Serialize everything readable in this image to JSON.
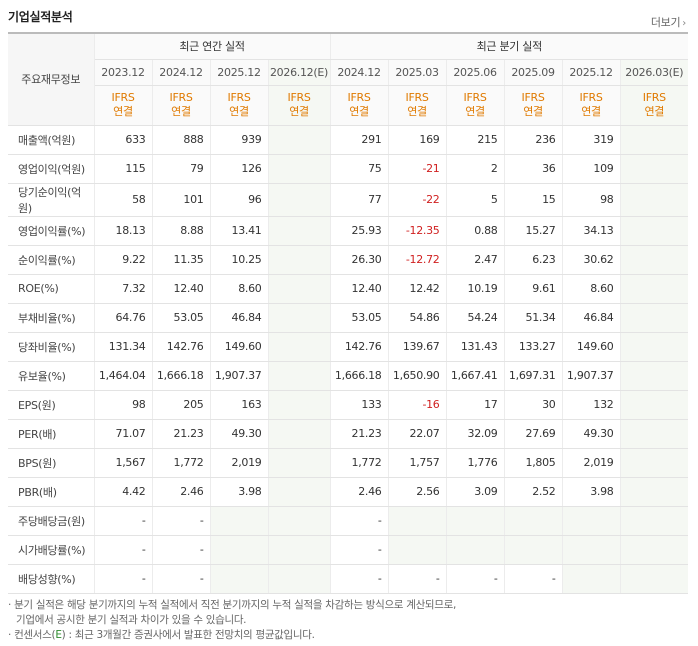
{
  "title": "기업실적분석",
  "more_label": "더보기",
  "more_arrow": "›",
  "groups": {
    "annual": "최근 연간 실적",
    "quarterly": "최근 분기 실적"
  },
  "row_header_label": "주요재무정보",
  "annual_years": [
    "2023.12",
    "2024.12",
    "2025.12",
    "2026.12(E)"
  ],
  "quarter_years": [
    "2024.12",
    "2025.03",
    "2025.06",
    "2025.09",
    "2025.12",
    "2026.03(E)"
  ],
  "ifrs_line1": "IFRS",
  "ifrs_line2": "연결",
  "rows": [
    {
      "label": "매출액(억원)",
      "annual": [
        "633",
        "888",
        "939",
        ""
      ],
      "quarterly": [
        "291",
        "169",
        "215",
        "236",
        "319",
        ""
      ]
    },
    {
      "label": "영업이익(억원)",
      "annual": [
        "115",
        "79",
        "126",
        ""
      ],
      "quarterly": [
        "75",
        "-21",
        "2",
        "36",
        "109",
        ""
      ]
    },
    {
      "label": "당기순이익(억원)",
      "annual": [
        "58",
        "101",
        "96",
        ""
      ],
      "quarterly": [
        "77",
        "-22",
        "5",
        "15",
        "98",
        ""
      ]
    },
    {
      "label": "영업이익률(%)",
      "annual": [
        "18.13",
        "8.88",
        "13.41",
        ""
      ],
      "quarterly": [
        "25.93",
        "-12.35",
        "0.88",
        "15.27",
        "34.13",
        ""
      ]
    },
    {
      "label": "순이익률(%)",
      "annual": [
        "9.22",
        "11.35",
        "10.25",
        ""
      ],
      "quarterly": [
        "26.30",
        "-12.72",
        "2.47",
        "6.23",
        "30.62",
        ""
      ]
    },
    {
      "label": "ROE(%)",
      "annual": [
        "7.32",
        "12.40",
        "8.60",
        ""
      ],
      "quarterly": [
        "12.40",
        "12.42",
        "10.19",
        "9.61",
        "8.60",
        ""
      ]
    },
    {
      "label": "부채비율(%)",
      "annual": [
        "64.76",
        "53.05",
        "46.84",
        ""
      ],
      "quarterly": [
        "53.05",
        "54.86",
        "54.24",
        "51.34",
        "46.84",
        ""
      ]
    },
    {
      "label": "당좌비율(%)",
      "annual": [
        "131.34",
        "142.76",
        "149.60",
        ""
      ],
      "quarterly": [
        "142.76",
        "139.67",
        "131.43",
        "133.27",
        "149.60",
        ""
      ]
    },
    {
      "label": "유보율(%)",
      "annual": [
        "1,464.04",
        "1,666.18",
        "1,907.37",
        ""
      ],
      "quarterly": [
        "1,666.18",
        "1,650.90",
        "1,667.41",
        "1,697.31",
        "1,907.37",
        ""
      ]
    },
    {
      "label": "EPS(원)",
      "annual": [
        "98",
        "205",
        "163",
        ""
      ],
      "quarterly": [
        "133",
        "-16",
        "17",
        "30",
        "132",
        ""
      ]
    },
    {
      "label": "PER(배)",
      "annual": [
        "71.07",
        "21.23",
        "49.30",
        ""
      ],
      "quarterly": [
        "21.23",
        "22.07",
        "32.09",
        "27.69",
        "49.30",
        ""
      ]
    },
    {
      "label": "BPS(원)",
      "annual": [
        "1,567",
        "1,772",
        "2,019",
        ""
      ],
      "quarterly": [
        "1,772",
        "1,757",
        "1,776",
        "1,805",
        "2,019",
        ""
      ]
    },
    {
      "label": "PBR(배)",
      "annual": [
        "4.42",
        "2.46",
        "3.98",
        ""
      ],
      "quarterly": [
        "2.46",
        "2.56",
        "3.09",
        "2.52",
        "3.98",
        ""
      ]
    },
    {
      "label": "주당배당금(원)",
      "annual": [
        "-",
        "-",
        "",
        ""
      ],
      "quarterly": [
        "-",
        "",
        "",
        "",
        "",
        ""
      ]
    },
    {
      "label": "시가배당률(%)",
      "annual": [
        "-",
        "-",
        "",
        ""
      ],
      "quarterly": [
        "-",
        "",
        "",
        "",
        "",
        ""
      ]
    },
    {
      "label": "배당성향(%)",
      "annual": [
        "-",
        "-",
        "",
        ""
      ],
      "quarterly": [
        "-",
        "-",
        "-",
        "-",
        "",
        ""
      ]
    }
  ],
  "notes": {
    "line1": "· 분기 실적은 해당 분기까지의 누적 실적에서 직전 분기까지의 누적 실적을 차감하는 방식으로 계산되므로,",
    "line2": "기업에서 공시한 분기 실적과 차이가 있을 수 있습니다.",
    "line3_prefix": "· 컨센서스(",
    "line3_e": "E",
    "line3_suffix": ") : 최근 3개월간 증권사에서 발표한 전망치의 평균값입니다."
  }
}
